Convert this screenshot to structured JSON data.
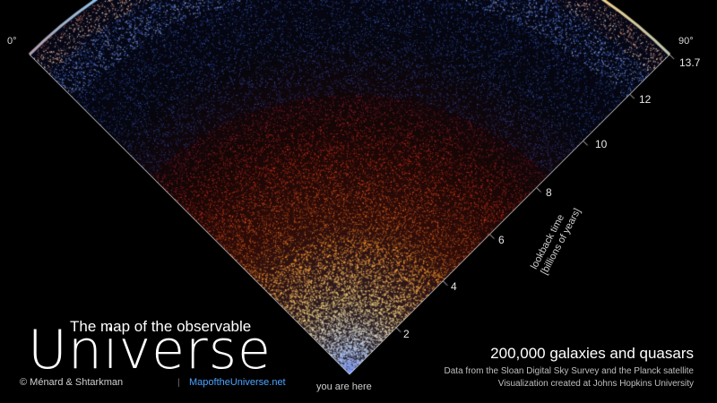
{
  "figure": {
    "angle_left": "0°",
    "angle_right": "90°",
    "axis_ticks": [
      "13.7",
      "12",
      "10",
      "8",
      "6",
      "4",
      "2"
    ],
    "axis_label_line1": "lookback time",
    "axis_label_line2": "[billions of years]",
    "origin_label": "you are here",
    "colors": {
      "near": "#ffe08a",
      "mid": "#ff3b1a",
      "far": "#3f6fe8",
      "cmb": "#ffffff",
      "link": "#4da3ff",
      "background": "#000000"
    }
  },
  "branding": {
    "title_line1": "The map of the observable",
    "title_line2": "Universe",
    "credit": "© Ménard & Shtarkman",
    "separator": "|",
    "website": "MapoftheUniverse.net"
  },
  "caption": {
    "headline": "200,000 galaxies and quasars",
    "source_line1": "Data from the Sloan Digital Sky Survey and the Planck satellite",
    "source_line2": "Visualization created at Johns Hopkins University"
  }
}
